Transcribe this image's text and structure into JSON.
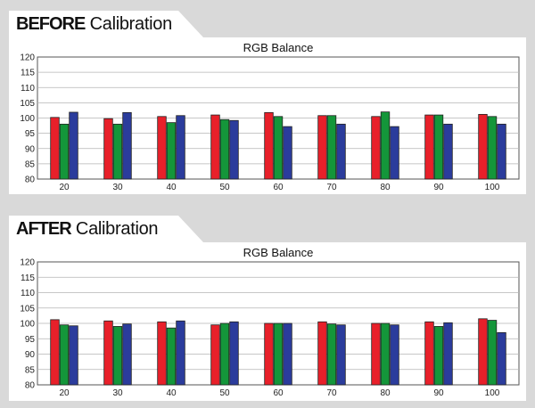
{
  "panels": [
    {
      "prefix": "BEFORE",
      "suffix": " Calibration"
    },
    {
      "prefix": "AFTER",
      "suffix": " Calibration"
    }
  ],
  "colors": {
    "red": "#e8202a",
    "green": "#14963a",
    "blue": "#2b3c9c"
  },
  "chart_data": [
    {
      "type": "bar",
      "title": "RGB Balance",
      "categories": [
        "20",
        "30",
        "40",
        "50",
        "60",
        "70",
        "80",
        "90",
        "100"
      ],
      "ylim": [
        80,
        120
      ],
      "yticks": [
        80,
        85,
        90,
        95,
        100,
        105,
        110,
        115,
        120
      ],
      "grid": true,
      "series": [
        {
          "color": "red",
          "values": [
            100.2,
            99.8,
            100.5,
            101.0,
            101.8,
            100.8,
            100.5,
            101.0,
            101.2
          ]
        },
        {
          "color": "green",
          "values": [
            98.0,
            98.0,
            98.5,
            99.5,
            100.5,
            100.8,
            102.0,
            101.0,
            100.5
          ]
        },
        {
          "color": "blue",
          "values": [
            101.9,
            101.8,
            100.8,
            99.2,
            97.2,
            98.0,
            97.2,
            98.0,
            98.0
          ]
        }
      ]
    },
    {
      "type": "bar",
      "title": "RGB Balance",
      "categories": [
        "20",
        "30",
        "40",
        "50",
        "60",
        "70",
        "80",
        "90",
        "100"
      ],
      "ylim": [
        80,
        120
      ],
      "yticks": [
        80,
        85,
        90,
        95,
        100,
        105,
        110,
        115,
        120
      ],
      "grid": true,
      "series": [
        {
          "color": "red",
          "values": [
            101.2,
            100.8,
            100.5,
            99.5,
            100.0,
            100.5,
            100.0,
            100.5,
            101.5
          ]
        },
        {
          "color": "green",
          "values": [
            99.5,
            99.0,
            98.5,
            100.0,
            100.0,
            99.8,
            100.0,
            99.0,
            101.0
          ]
        },
        {
          "color": "blue",
          "values": [
            99.2,
            99.8,
            100.8,
            100.5,
            100.0,
            99.5,
            99.5,
            100.2,
            97.0
          ]
        }
      ]
    }
  ]
}
